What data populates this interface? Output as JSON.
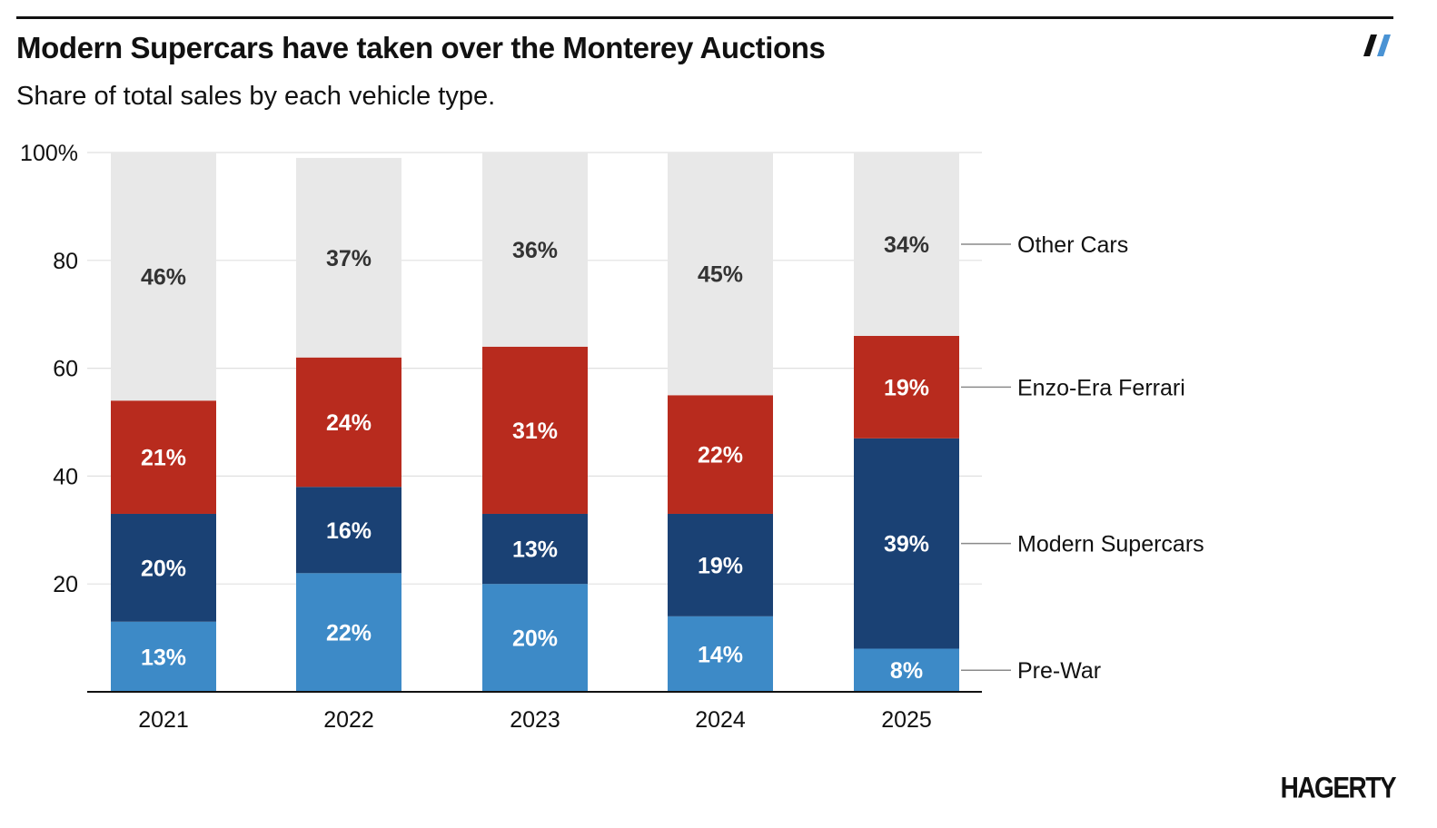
{
  "header": {
    "title": "Modern Supercars have taken over the Monterey Auctions",
    "subtitle": "Share of total sales by each vehicle type."
  },
  "footer": {
    "brand": "HAGERTY"
  },
  "colors": {
    "pre_war": "#3d8ac7",
    "modern_supercars": "#1a4174",
    "enzo_era_ferrari": "#b82b1e",
    "other_cars": "#e8e8e8",
    "gridline": "#e0e0e0",
    "axis": "#111111",
    "logo_left": "#111111",
    "logo_right": "#4a93d4"
  },
  "chart_data": {
    "type": "bar",
    "stacked": true,
    "title": "Modern Supercars have taken over the Monterey Auctions",
    "subtitle": "Share of total sales by each vehicle type.",
    "xlabel": "",
    "ylabel": "",
    "ylim": [
      0,
      100
    ],
    "yticks": [
      {
        "value": 20,
        "label": "20"
      },
      {
        "value": 40,
        "label": "40"
      },
      {
        "value": 60,
        "label": "60"
      },
      {
        "value": 80,
        "label": "80"
      },
      {
        "value": 100,
        "label": "100%"
      }
    ],
    "grid": true,
    "legend": "right, inline labels",
    "categories": [
      "2021",
      "2022",
      "2023",
      "2024",
      "2025"
    ],
    "series": [
      {
        "name": "Pre-War",
        "color_key": "pre_war",
        "values": [
          13,
          22,
          20,
          14,
          8
        ],
        "labels": [
          "13%",
          "22%",
          "20%",
          "14%",
          "8%"
        ]
      },
      {
        "name": "Modern Supercars",
        "color_key": "modern_supercars",
        "values": [
          20,
          16,
          13,
          19,
          39
        ],
        "labels": [
          "20%",
          "16%",
          "13%",
          "19%",
          "39%"
        ]
      },
      {
        "name": "Enzo-Era Ferrari",
        "color_key": "enzo_era_ferrari",
        "values": [
          21,
          24,
          31,
          22,
          19
        ],
        "labels": [
          "21%",
          "24%",
          "31%",
          "22%",
          "19%"
        ]
      },
      {
        "name": "Other Cars",
        "color_key": "other_cars",
        "values": [
          46,
          37,
          36,
          45,
          34
        ],
        "labels": [
          "46%",
          "37%",
          "36%",
          "45%",
          "34%"
        ]
      }
    ]
  }
}
